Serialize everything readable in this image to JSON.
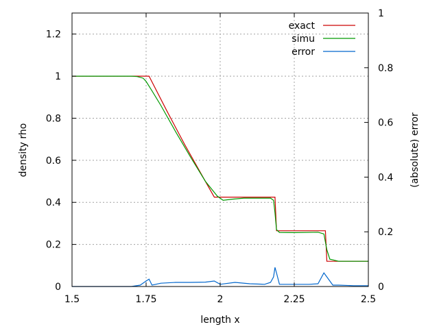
{
  "chart_data": {
    "type": "line",
    "xlabel": "length x",
    "ylabel": "density rho",
    "y2label": "(absolute) error",
    "xlim": [
      1.5,
      2.5
    ],
    "ylim": [
      0,
      1.3
    ],
    "y2lim": [
      0,
      1
    ],
    "xticks": [
      1.5,
      1.75,
      2,
      2.25,
      2.5
    ],
    "xtick_labels": [
      "1.5",
      "1.75",
      "2",
      "2.25",
      "2.5"
    ],
    "yticks": [
      0,
      0.2,
      0.4,
      0.6,
      0.8,
      1,
      1.2
    ],
    "ytick_labels": [
      "0",
      "0.2",
      "0.4",
      "0.6",
      "0.8",
      "1",
      "1.2"
    ],
    "y2ticks": [
      0,
      0.2,
      0.4,
      0.6,
      0.8,
      1
    ],
    "y2tick_labels": [
      "0",
      "0.2",
      "0.4",
      "0.6",
      "0.8",
      "1"
    ],
    "grid": true,
    "legend_position": "top-right",
    "series": [
      {
        "name": "exact",
        "color": "#cc0000",
        "axis": "left",
        "x": [
          1.5,
          1.75,
          1.76,
          1.82,
          1.88,
          1.94,
          1.98,
          2.18,
          2.185,
          2.19,
          2.2,
          2.35,
          2.355,
          2.36,
          2.5
        ],
        "y": [
          1.0,
          1.0,
          1.0,
          0.835,
          0.675,
          0.525,
          0.425,
          0.425,
          0.425,
          0.265,
          0.265,
          0.265,
          0.265,
          0.12,
          0.12
        ]
      },
      {
        "name": "simu",
        "color": "#009900",
        "axis": "left",
        "x": [
          1.5,
          1.7,
          1.72,
          1.74,
          1.75,
          1.77,
          1.8,
          1.85,
          1.9,
          1.95,
          1.99,
          2.01,
          2.04,
          2.08,
          2.12,
          2.17,
          2.18,
          2.185,
          2.19,
          2.2,
          2.25,
          2.33,
          2.35,
          2.36,
          2.37,
          2.4,
          2.5
        ],
        "y": [
          1.0,
          1.0,
          0.998,
          0.99,
          0.975,
          0.93,
          0.86,
          0.735,
          0.615,
          0.5,
          0.43,
          0.41,
          0.415,
          0.42,
          0.42,
          0.42,
          0.41,
          0.35,
          0.27,
          0.257,
          0.256,
          0.258,
          0.25,
          0.175,
          0.13,
          0.12,
          0.12
        ]
      },
      {
        "name": "error",
        "color": "#0066cc",
        "axis": "right",
        "x": [
          1.5,
          1.7,
          1.73,
          1.75,
          1.76,
          1.77,
          1.8,
          1.85,
          1.9,
          1.95,
          1.98,
          2.0,
          2.05,
          2.1,
          2.15,
          2.17,
          2.18,
          2.185,
          2.19,
          2.2,
          2.25,
          2.3,
          2.33,
          2.35,
          2.36,
          2.38,
          2.4,
          2.45,
          2.5
        ],
        "y": [
          0.0,
          0.0,
          0.005,
          0.02,
          0.027,
          0.005,
          0.012,
          0.015,
          0.015,
          0.016,
          0.02,
          0.008,
          0.015,
          0.01,
          0.008,
          0.015,
          0.035,
          0.07,
          0.05,
          0.008,
          0.008,
          0.008,
          0.01,
          0.05,
          0.035,
          0.005,
          0.005,
          0.003,
          0.003
        ]
      }
    ]
  }
}
